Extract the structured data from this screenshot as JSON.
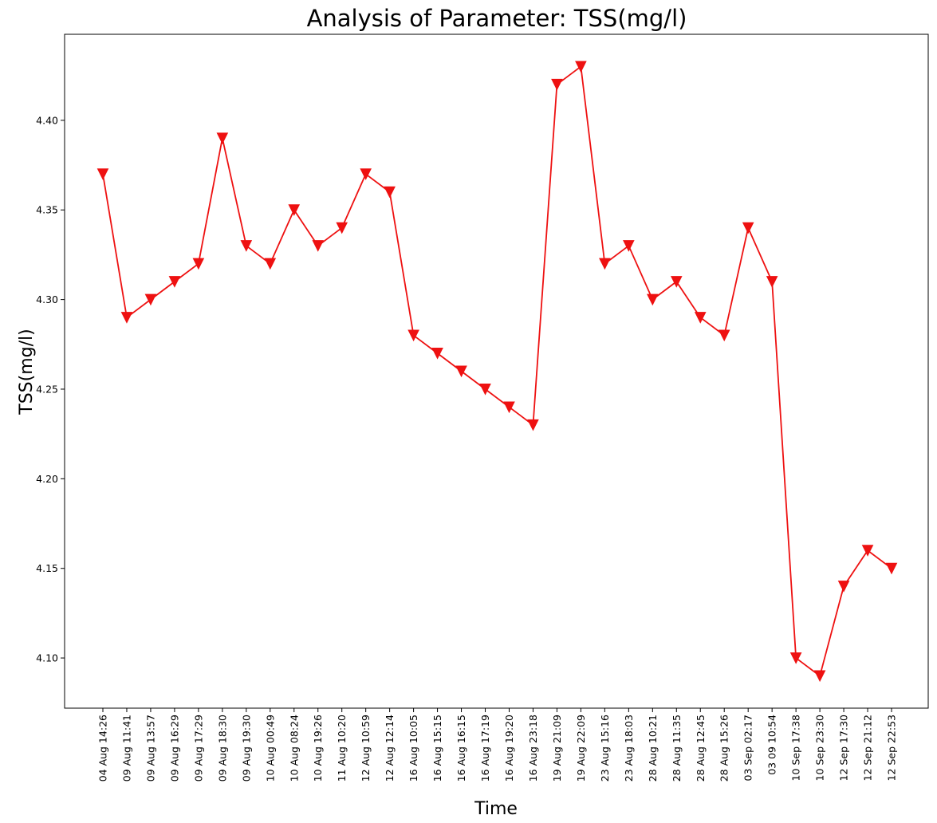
{
  "chart_data": {
    "type": "line",
    "title": "Analysis of Parameter: TSS(mg/l)",
    "xlabel": "Time",
    "ylabel": "TSS(mg/l)",
    "ylim": [
      4.072,
      4.448
    ],
    "yticks": [
      "4.10",
      "4.15",
      "4.20",
      "4.25",
      "4.30",
      "4.35",
      "4.40"
    ],
    "grid": false,
    "series_color": "#ee1111",
    "marker": "triangle-down",
    "categories": [
      "04 Aug 14:26",
      "09 Aug 11:41",
      "09 Aug 13:57",
      "09 Aug 16:29",
      "09 Aug 17:29",
      "09 Aug 18:30",
      "09 Aug 19:30",
      "10 Aug 00:49",
      "10 Aug 08:24",
      "10 Aug 19:26",
      "11 Aug 10:20",
      "12 Aug 10:59",
      "12 Aug 12:14",
      "16 Aug 10:05",
      "16 Aug 15:15",
      "16 Aug 16:15",
      "16 Aug 17:19",
      "16 Aug 19:20",
      "16 Aug 23:18",
      "19 Aug 21:09",
      "19 Aug 22:09",
      "23 Aug 15:16",
      "23 Aug 18:03",
      "28 Aug 10:21",
      "28 Aug 11:35",
      "28 Aug 12:45",
      "28 Aug 15:26",
      "03 Sep 02:17",
      "03 09 10:54",
      "10 Sep 17:38",
      "10 Sep 23:30",
      "12 Sep 17:30",
      "12 Sep 21:12",
      "12 Sep 22:53"
    ],
    "values": [
      4.37,
      4.29,
      4.3,
      4.31,
      4.32,
      4.39,
      4.33,
      4.32,
      4.35,
      4.33,
      4.34,
      4.37,
      4.36,
      4.28,
      4.27,
      4.26,
      4.25,
      4.24,
      4.23,
      4.42,
      4.43,
      4.32,
      4.33,
      4.3,
      4.31,
      4.29,
      4.28,
      4.34,
      4.31,
      4.1,
      4.09,
      4.14,
      4.16,
      4.15
    ]
  }
}
